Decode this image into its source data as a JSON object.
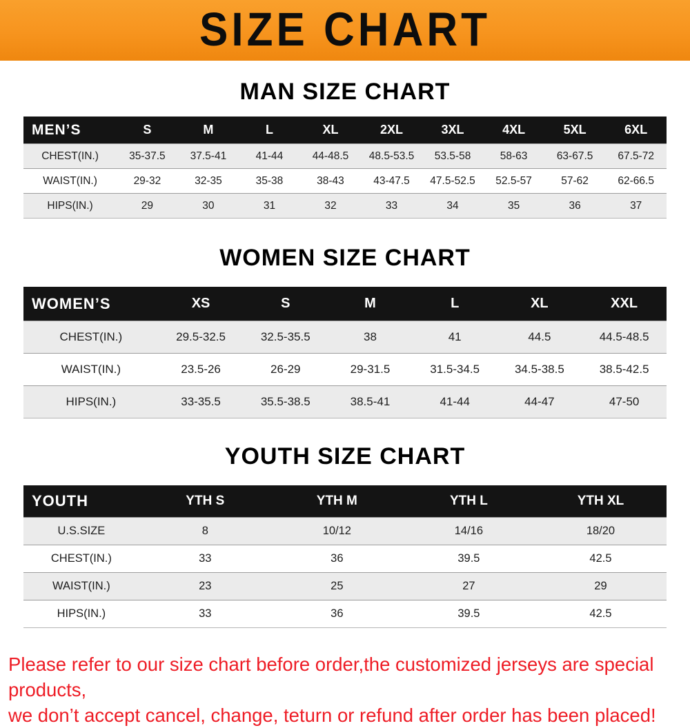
{
  "banner": {
    "title": "SIZE CHART",
    "bg_color": "#f7941e"
  },
  "sections": [
    {
      "heading": "MAN SIZE CHART",
      "table": {
        "label": "MEN’S",
        "columns": [
          "S",
          "M",
          "L",
          "XL",
          "2XL",
          "3XL",
          "4XL",
          "5XL",
          "6XL"
        ],
        "rows": [
          {
            "label": "CHEST(IN.)",
            "values": [
              "35-37.5",
              "37.5-41",
              "41-44",
              "44-48.5",
              "48.5-53.5",
              "53.5-58",
              "58-63",
              "63-67.5",
              "67.5-72"
            ]
          },
          {
            "label": "WAIST(IN.)",
            "values": [
              "29-32",
              "32-35",
              "35-38",
              "38-43",
              "43-47.5",
              "47.5-52.5",
              "52.5-57",
              "57-62",
              "62-66.5"
            ]
          },
          {
            "label": "HIPS(IN.)",
            "values": [
              "29",
              "30",
              "31",
              "32",
              "33",
              "34",
              "35",
              "36",
              "37"
            ]
          }
        ]
      }
    },
    {
      "heading": "WOMEN SIZE CHART",
      "table": {
        "label": "WOMEN’S",
        "columns": [
          "XS",
          "S",
          "M",
          "L",
          "XL",
          "XXL"
        ],
        "rows": [
          {
            "label": "CHEST(IN.)",
            "values": [
              "29.5-32.5",
              "32.5-35.5",
              "38",
              "41",
              "44.5",
              "44.5-48.5"
            ]
          },
          {
            "label": "WAIST(IN.)",
            "values": [
              "23.5-26",
              "26-29",
              "29-31.5",
              "31.5-34.5",
              "34.5-38.5",
              "38.5-42.5"
            ]
          },
          {
            "label": "HIPS(IN.)",
            "values": [
              "33-35.5",
              "35.5-38.5",
              "38.5-41",
              "41-44",
              "44-47",
              "47-50"
            ]
          }
        ]
      }
    },
    {
      "heading": "YOUTH SIZE CHART",
      "table": {
        "label": "YOUTH",
        "columns": [
          "YTH S",
          "YTH M",
          "YTH L",
          "YTH XL"
        ],
        "rows": [
          {
            "label": "U.S.SIZE",
            "values": [
              "8",
              "10/12",
              "14/16",
              "18/20"
            ]
          },
          {
            "label": "CHEST(IN.)",
            "values": [
              "33",
              "36",
              "39.5",
              "42.5"
            ]
          },
          {
            "label": "WAIST(IN.)",
            "values": [
              "23",
              "25",
              "27",
              "29"
            ]
          },
          {
            "label": "HIPS(IN.)",
            "values": [
              "33",
              "36",
              "39.5",
              "42.5"
            ]
          }
        ]
      }
    }
  ],
  "footer": {
    "line1": "Please refer to our size chart before order,the customized jerseys are special products,",
    "line2": "we don’t accept cancel, change, teturn or refund after order has been placed!",
    "text_color": "#ee1c25"
  },
  "colors": {
    "header_row_bg": "#141414",
    "alt_row_bg": "#ebebeb",
    "banner_orange": "#f7941e"
  }
}
